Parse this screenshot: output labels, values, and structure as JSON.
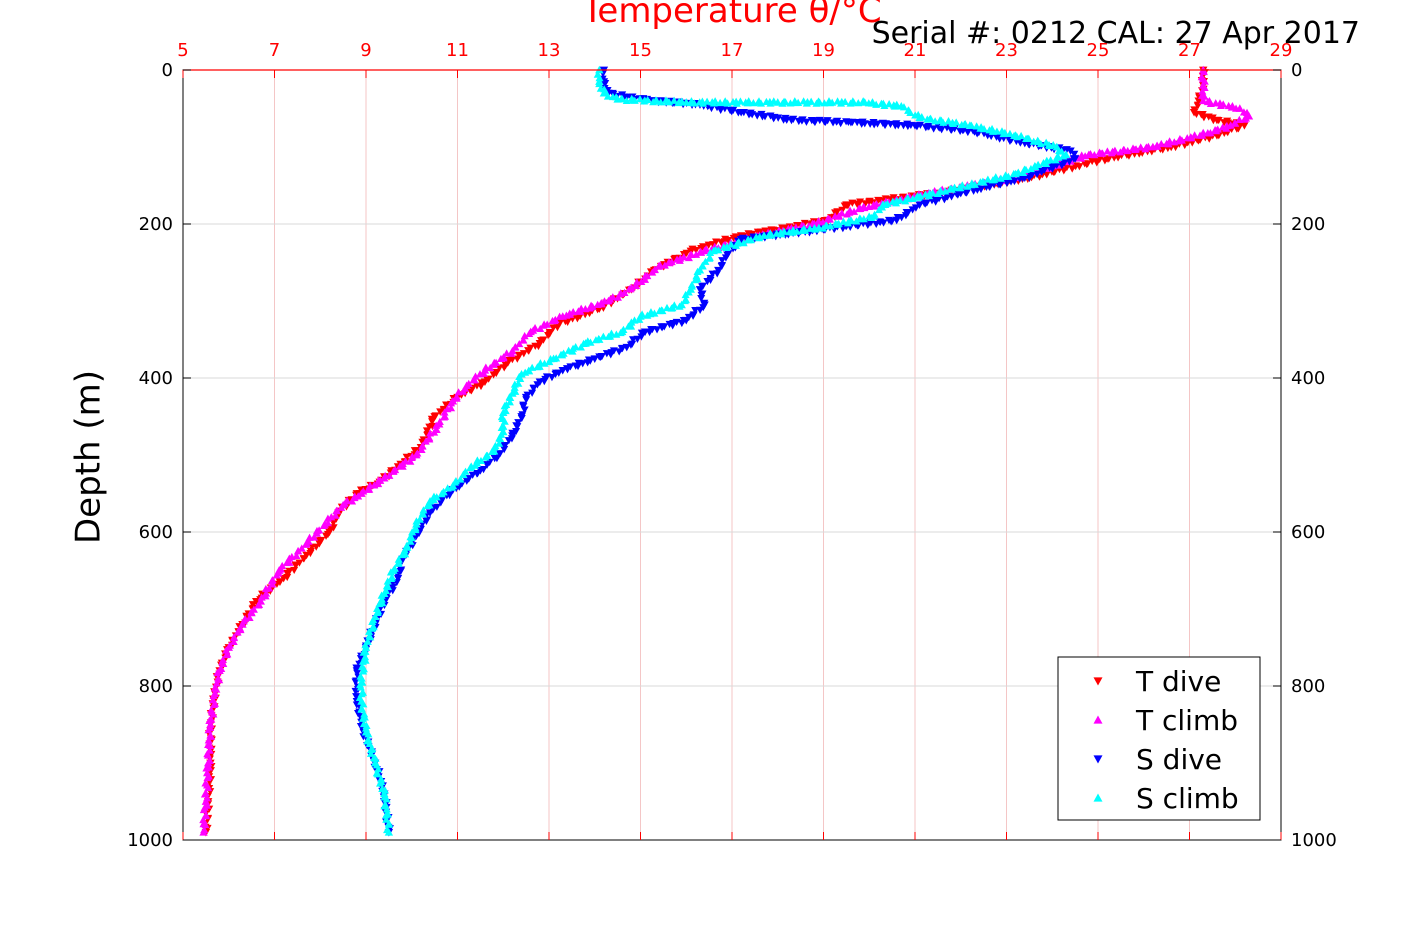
{
  "chart_data": {
    "type": "scatter",
    "title": "Temperature θ/°C",
    "annotation": "Serial #: 0212  CAL: 27 Apr 2017",
    "xlabel": "Temperature θ/°C",
    "ylabel": "Depth (m)",
    "xlim": [
      5,
      29
    ],
    "ylim": [
      0,
      1000
    ],
    "y_reversed": true,
    "grid": true,
    "legend_position": "bottom-right",
    "x_ticks": [
      "5",
      "7",
      "9",
      "11",
      "13",
      "15",
      "17",
      "19",
      "21",
      "23",
      "25",
      "27",
      "29"
    ],
    "y_ticks": [
      "0",
      "200",
      "400",
      "600",
      "800",
      "1000"
    ],
    "colors": {
      "axis_top": "#ff0000",
      "grid_vertical": "#f4c6c6",
      "grid_horizontal": "#d9d9d9",
      "t_dive": "#ff0000",
      "t_climb": "#ff00ff",
      "s_dive": "#0000ff",
      "s_climb": "#00ffff"
    },
    "series": [
      {
        "name": "T dive",
        "marker": "triangle-down",
        "color": "#ff0000",
        "points": [
          [
            27.3,
            0
          ],
          [
            27.3,
            20
          ],
          [
            27.2,
            40
          ],
          [
            27.1,
            55
          ],
          [
            27.6,
            65
          ],
          [
            28.2,
            72
          ],
          [
            27.6,
            85
          ],
          [
            26.6,
            100
          ],
          [
            25.2,
            115
          ],
          [
            23.5,
            140
          ],
          [
            21.5,
            160
          ],
          [
            19.5,
            175
          ],
          [
            19.1,
            195
          ],
          [
            18.2,
            205
          ],
          [
            17.2,
            215
          ],
          [
            16.1,
            235
          ],
          [
            15.3,
            260
          ],
          [
            14.8,
            285
          ],
          [
            14.1,
            310
          ],
          [
            13.2,
            330
          ],
          [
            12.8,
            355
          ],
          [
            12.1,
            380
          ],
          [
            11.6,
            405
          ],
          [
            11.0,
            425
          ],
          [
            10.5,
            450
          ],
          [
            10.2,
            490
          ],
          [
            9.7,
            515
          ],
          [
            9.3,
            535
          ],
          [
            8.8,
            550
          ],
          [
            8.4,
            575
          ],
          [
            8.2,
            600
          ],
          [
            7.7,
            630
          ],
          [
            7.2,
            660
          ],
          [
            6.6,
            690
          ],
          [
            6.3,
            720
          ],
          [
            6.0,
            750
          ],
          [
            5.8,
            780
          ],
          [
            5.7,
            810
          ],
          [
            5.6,
            850
          ],
          [
            5.6,
            900
          ],
          [
            5.55,
            950
          ],
          [
            5.5,
            990
          ]
        ]
      },
      {
        "name": "T climb",
        "marker": "triangle-up",
        "color": "#ff00ff",
        "points": [
          [
            27.3,
            0
          ],
          [
            27.3,
            20
          ],
          [
            27.3,
            40
          ],
          [
            28.1,
            50
          ],
          [
            28.3,
            60
          ],
          [
            27.9,
            72
          ],
          [
            27.4,
            82
          ],
          [
            26.2,
            100
          ],
          [
            24.8,
            110
          ],
          [
            23.2,
            140
          ],
          [
            21.3,
            160
          ],
          [
            19.8,
            180
          ],
          [
            18.8,
            200
          ],
          [
            17.6,
            215
          ],
          [
            16.4,
            235
          ],
          [
            15.4,
            255
          ],
          [
            14.9,
            280
          ],
          [
            14.3,
            300
          ],
          [
            13.3,
            320
          ],
          [
            12.6,
            340
          ],
          [
            12.2,
            365
          ],
          [
            11.6,
            390
          ],
          [
            11.2,
            410
          ],
          [
            10.9,
            430
          ],
          [
            10.6,
            460
          ],
          [
            10.1,
            500
          ],
          [
            9.4,
            530
          ],
          [
            8.9,
            550
          ],
          [
            8.5,
            565
          ],
          [
            8.1,
            590
          ],
          [
            7.7,
            615
          ],
          [
            7.1,
            650
          ],
          [
            6.7,
            690
          ],
          [
            6.3,
            720
          ],
          [
            6.0,
            750
          ],
          [
            5.8,
            780
          ],
          [
            5.7,
            810
          ],
          [
            5.6,
            850
          ],
          [
            5.55,
            900
          ],
          [
            5.5,
            950
          ],
          [
            5.45,
            990
          ]
        ]
      },
      {
        "name": "S dive",
        "marker": "triangle-down",
        "color": "#0000ff",
        "points": [
          [
            14.2,
            0
          ],
          [
            14.2,
            15
          ],
          [
            14.3,
            30
          ],
          [
            14.7,
            35
          ],
          [
            15.3,
            40
          ],
          [
            16.3,
            45
          ],
          [
            17.2,
            55
          ],
          [
            18.3,
            65
          ],
          [
            19.6,
            68
          ],
          [
            21.0,
            72
          ],
          [
            22.3,
            80
          ],
          [
            23.4,
            95
          ],
          [
            24.4,
            105
          ],
          [
            24.5,
            115
          ],
          [
            23.4,
            140
          ],
          [
            22.0,
            160
          ],
          [
            21.1,
            175
          ],
          [
            20.6,
            195
          ],
          [
            18.6,
            210
          ],
          [
            17.2,
            220
          ],
          [
            16.9,
            240
          ],
          [
            16.7,
            260
          ],
          [
            16.3,
            285
          ],
          [
            16.4,
            305
          ],
          [
            16.0,
            325
          ],
          [
            15.1,
            340
          ],
          [
            14.7,
            360
          ],
          [
            14.0,
            375
          ],
          [
            13.3,
            390
          ],
          [
            12.8,
            405
          ],
          [
            12.5,
            425
          ],
          [
            12.4,
            450
          ],
          [
            12.2,
            475
          ],
          [
            11.9,
            500
          ],
          [
            11.5,
            520
          ],
          [
            10.9,
            545
          ],
          [
            10.4,
            575
          ],
          [
            10.1,
            605
          ],
          [
            9.8,
            635
          ],
          [
            9.7,
            660
          ],
          [
            9.4,
            690
          ],
          [
            9.2,
            720
          ],
          [
            9.0,
            750
          ],
          [
            8.8,
            780
          ],
          [
            8.8,
            820
          ],
          [
            8.95,
            860
          ],
          [
            9.2,
            900
          ],
          [
            9.4,
            940
          ],
          [
            9.5,
            990
          ]
        ]
      },
      {
        "name": "S climb",
        "marker": "triangle-up",
        "color": "#00ffff",
        "points": [
          [
            14.1,
            0
          ],
          [
            14.1,
            15
          ],
          [
            14.2,
            30
          ],
          [
            14.5,
            38
          ],
          [
            16.0,
            42
          ],
          [
            18.0,
            42
          ],
          [
            19.9,
            42
          ],
          [
            20.7,
            47
          ],
          [
            21.1,
            62
          ],
          [
            22.2,
            72
          ],
          [
            23.2,
            85
          ],
          [
            24.1,
            100
          ],
          [
            24.3,
            110
          ],
          [
            23.2,
            135
          ],
          [
            21.8,
            155
          ],
          [
            20.3,
            175
          ],
          [
            20.1,
            190
          ],
          [
            18.9,
            205
          ],
          [
            17.7,
            215
          ],
          [
            16.6,
            235
          ],
          [
            16.3,
            260
          ],
          [
            16.1,
            285
          ],
          [
            15.9,
            305
          ],
          [
            15.0,
            320
          ],
          [
            14.6,
            340
          ],
          [
            13.8,
            355
          ],
          [
            13.1,
            375
          ],
          [
            12.4,
            395
          ],
          [
            12.2,
            420
          ],
          [
            12.0,
            445
          ],
          [
            12.0,
            470
          ],
          [
            11.8,
            495
          ],
          [
            11.3,
            515
          ],
          [
            10.9,
            540
          ],
          [
            10.4,
            560
          ],
          [
            10.1,
            590
          ],
          [
            9.9,
            620
          ],
          [
            9.6,
            650
          ],
          [
            9.4,
            680
          ],
          [
            9.2,
            710
          ],
          [
            9.0,
            750
          ],
          [
            8.9,
            790
          ],
          [
            8.9,
            820
          ],
          [
            9.0,
            860
          ],
          [
            9.2,
            900
          ],
          [
            9.4,
            940
          ],
          [
            9.5,
            990
          ]
        ]
      }
    ]
  }
}
